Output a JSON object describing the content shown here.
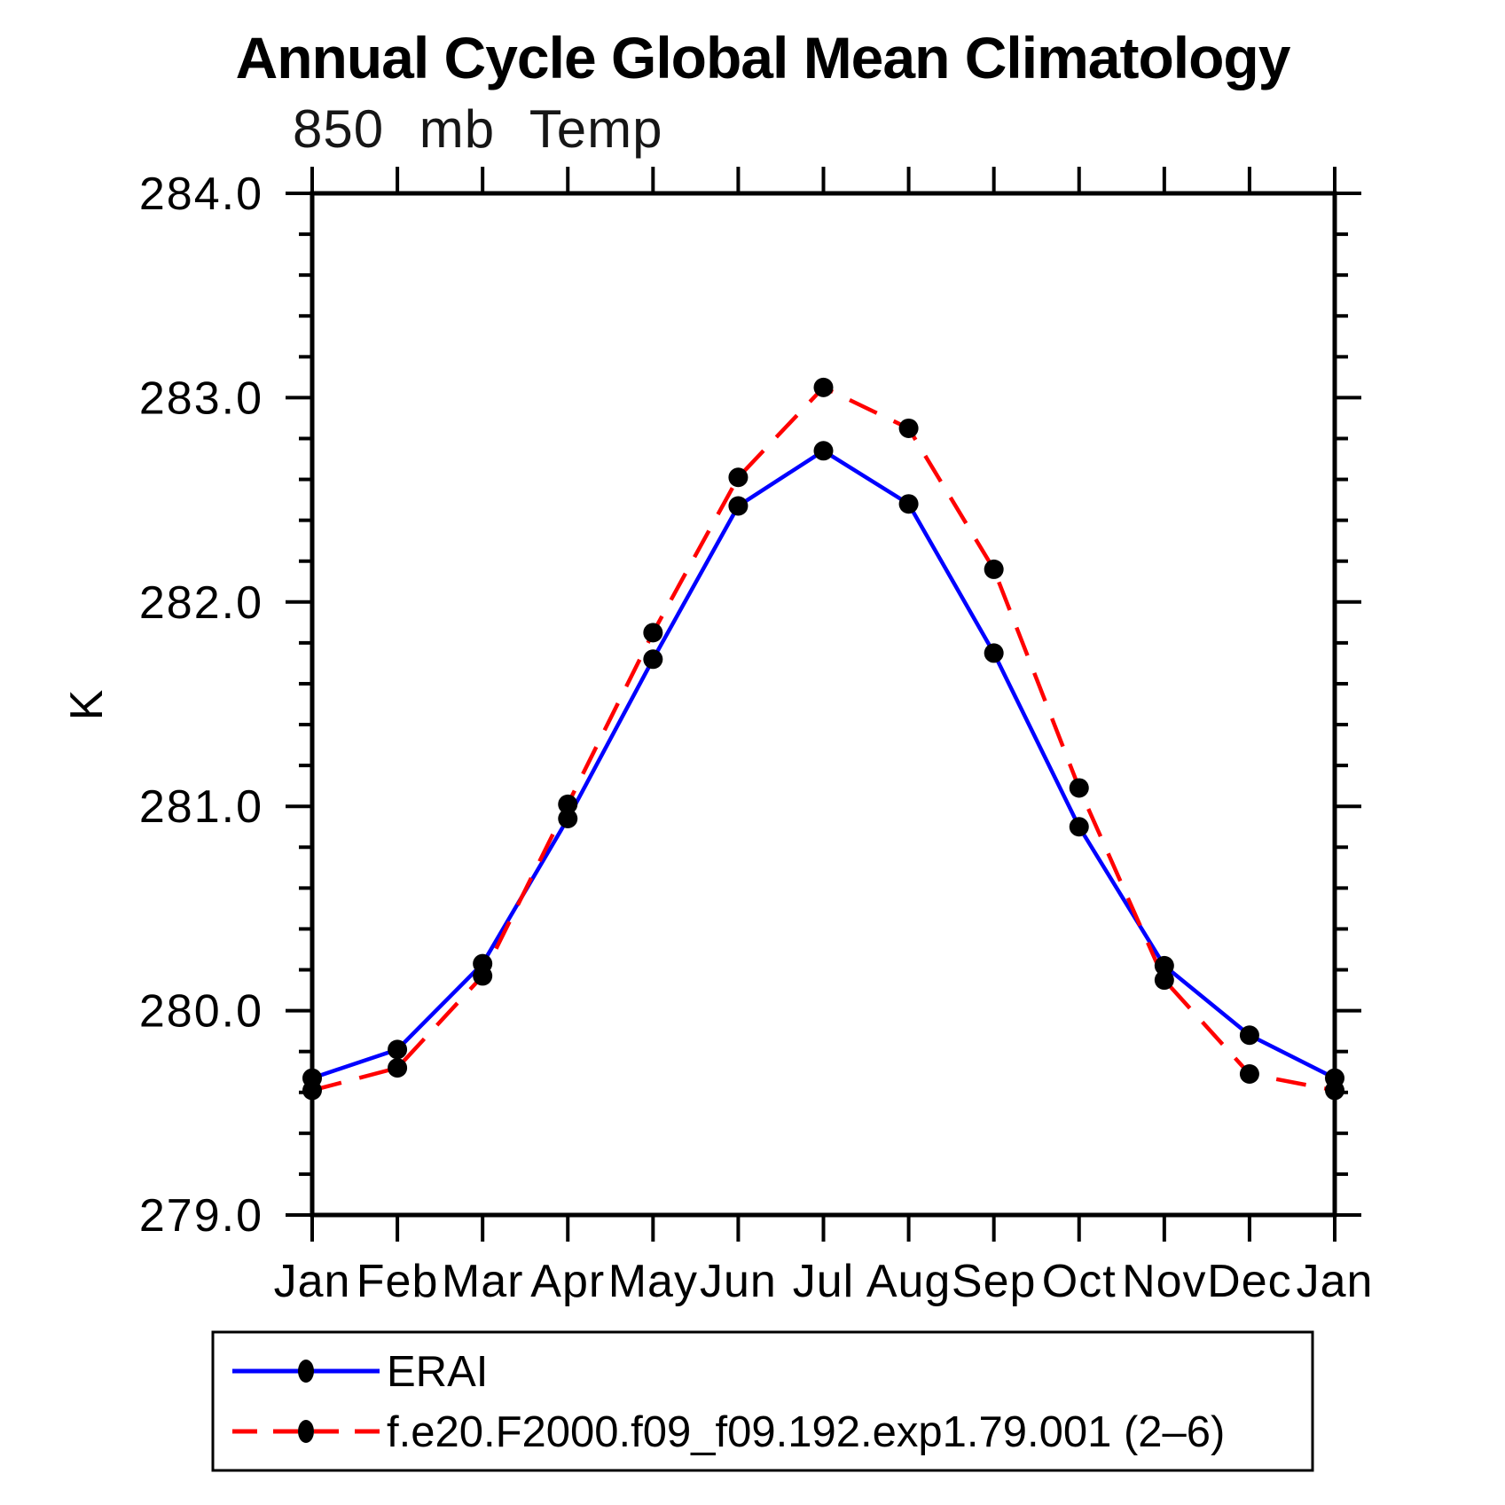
{
  "page": {
    "background": "#ffffff"
  },
  "chart_data": {
    "type": "line",
    "title": "Annual Cycle Global Mean Climatology",
    "subtitle": "850 mb Temp",
    "xlabel": "",
    "ylabel": "K",
    "ylim": [
      279.0,
      284.0
    ],
    "ytick_labels": [
      "279.0",
      "280.0",
      "281.0",
      "282.0",
      "283.0",
      "284.0"
    ],
    "ytick_minor_step": 0.2,
    "grid": false,
    "legend_position": "bottom",
    "categories": [
      "Jan",
      "Feb",
      "Mar",
      "Apr",
      "May",
      "Jun",
      "Jul",
      "Aug",
      "Sep",
      "Oct",
      "Nov",
      "Dec",
      "Jan"
    ],
    "series": [
      {
        "name": "ERAI",
        "color": "#0000ff",
        "style": "solid",
        "marker": "filled-circle",
        "marker_color": "#000000",
        "values": [
          279.67,
          279.81,
          280.23,
          280.94,
          281.72,
          282.47,
          282.74,
          282.48,
          281.75,
          280.9,
          280.22,
          279.88,
          279.67
        ]
      },
      {
        "name": "f.e20.F2000.f09_f09.192.exp1.79.001 (2–6)",
        "color": "#ff0000",
        "style": "dashed",
        "marker": "filled-circle",
        "marker_color": "#000000",
        "values": [
          279.61,
          279.72,
          280.17,
          281.01,
          281.85,
          282.61,
          283.05,
          282.85,
          282.16,
          281.09,
          280.15,
          279.69,
          279.61
        ]
      }
    ]
  }
}
